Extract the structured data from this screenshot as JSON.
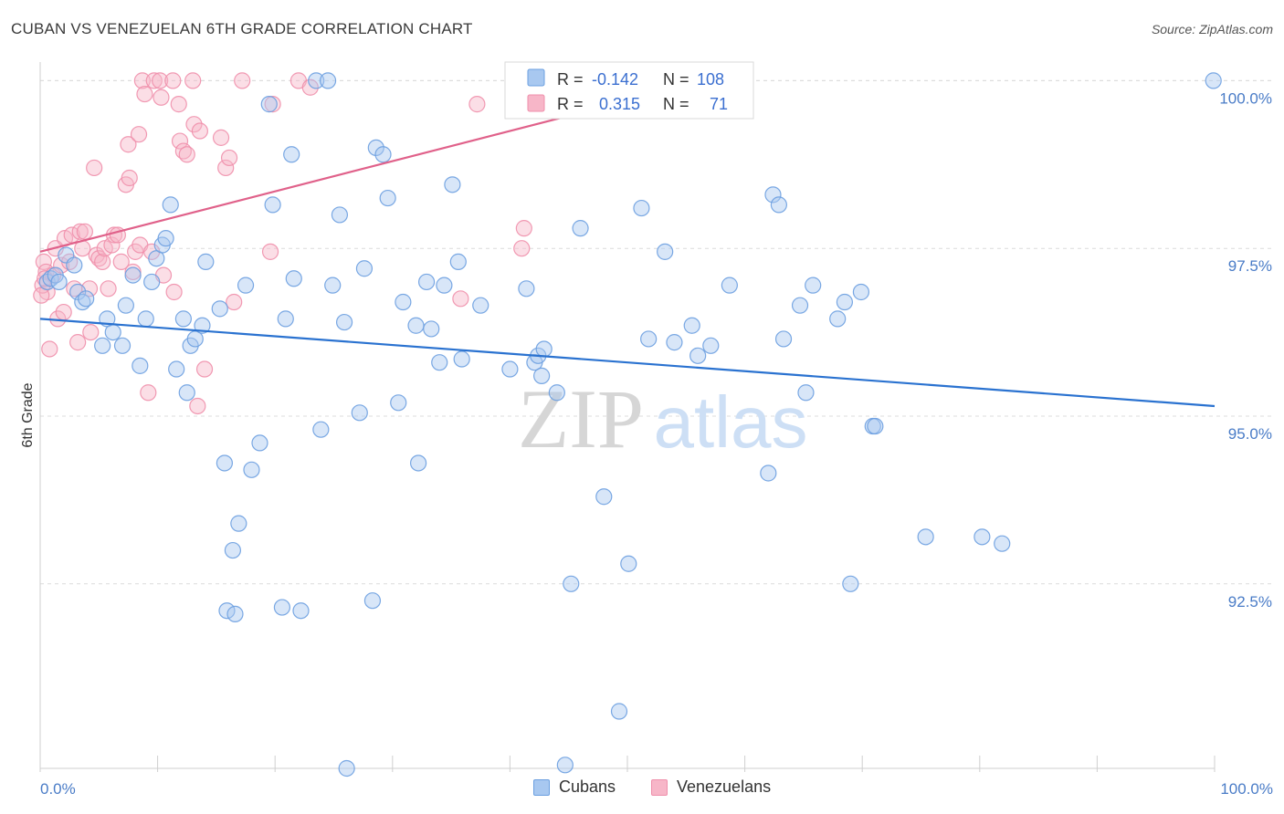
{
  "title": "CUBAN VS VENEZUELAN 6TH GRADE CORRELATION CHART",
  "source": "Source: ZipAtlas.com",
  "watermark": {
    "zip": "ZIP",
    "atlas": "atlas"
  },
  "colors": {
    "cuban_fill": "#a8c8f0",
    "cuban_stroke": "#6b9fe0",
    "cuban_line": "#2a72d0",
    "venez_fill": "#f7b6c8",
    "venez_stroke": "#ef8fab",
    "venez_line": "#e0618a",
    "tick_blue": "#4a7cc7",
    "grid": "#dcdcdc"
  },
  "legend": {
    "r_label": "R =",
    "n_label": "N =",
    "rows": [
      {
        "series": "Cubans",
        "r": "-0.142",
        "n": "108"
      },
      {
        "series": "Venezuelans",
        "r": "0.315",
        "n": "71"
      }
    ]
  },
  "bottom_legend": [
    "Cubans",
    "Venezuelans"
  ],
  "chart_data": {
    "type": "scatter",
    "xlabel": "",
    "ylabel": "6th Grade",
    "xlim": [
      0,
      100
    ],
    "ylim": [
      89.75,
      100.25
    ],
    "x_tick_labels": {
      "left": "0.0%",
      "right": "100.0%"
    },
    "y_ticks": [
      {
        "value": 100.0,
        "label": "100.0%"
      },
      {
        "value": 97.5,
        "label": "97.5%"
      },
      {
        "value": 95.0,
        "label": "95.0%"
      },
      {
        "value": 92.5,
        "label": "92.5%"
      }
    ],
    "series": [
      {
        "name": "Cubans",
        "r": -0.142,
        "n": 108,
        "trend": {
          "x": [
            0,
            100
          ],
          "y": [
            96.45,
            95.15
          ]
        },
        "points": [
          [
            0.6,
            97.0
          ],
          [
            0.9,
            97.05
          ],
          [
            1.3,
            97.1
          ],
          [
            1.6,
            97.0
          ],
          [
            2.2,
            97.4
          ],
          [
            2.9,
            97.25
          ],
          [
            3.2,
            96.85
          ],
          [
            3.6,
            96.7
          ],
          [
            3.9,
            96.75
          ],
          [
            5.3,
            96.05
          ],
          [
            5.7,
            96.45
          ],
          [
            6.2,
            96.25
          ],
          [
            7.0,
            96.05
          ],
          [
            7.3,
            96.65
          ],
          [
            7.9,
            97.1
          ],
          [
            8.5,
            95.75
          ],
          [
            9.0,
            96.45
          ],
          [
            9.5,
            97.0
          ],
          [
            9.9,
            97.35
          ],
          [
            10.4,
            97.55
          ],
          [
            10.7,
            97.65
          ],
          [
            11.1,
            98.15
          ],
          [
            11.6,
            95.7
          ],
          [
            12.2,
            96.45
          ],
          [
            12.5,
            95.35
          ],
          [
            12.8,
            96.05
          ],
          [
            13.2,
            96.15
          ],
          [
            13.8,
            96.35
          ],
          [
            14.1,
            97.3
          ],
          [
            15.3,
            96.6
          ],
          [
            15.7,
            94.3
          ],
          [
            15.9,
            92.1
          ],
          [
            16.4,
            93.0
          ],
          [
            16.6,
            92.05
          ],
          [
            16.9,
            93.4
          ],
          [
            17.5,
            96.95
          ],
          [
            18.0,
            94.2
          ],
          [
            18.7,
            94.6
          ],
          [
            19.5,
            99.65
          ],
          [
            19.8,
            98.15
          ],
          [
            20.6,
            92.15
          ],
          [
            20.9,
            96.45
          ],
          [
            21.4,
            98.9
          ],
          [
            21.6,
            97.05
          ],
          [
            22.2,
            92.1
          ],
          [
            23.5,
            100.0
          ],
          [
            23.9,
            94.8
          ],
          [
            24.5,
            100.0
          ],
          [
            24.9,
            96.95
          ],
          [
            25.5,
            98.0
          ],
          [
            25.9,
            96.4
          ],
          [
            26.1,
            89.75
          ],
          [
            27.2,
            95.05
          ],
          [
            27.6,
            97.2
          ],
          [
            28.3,
            92.25
          ],
          [
            28.6,
            99.0
          ],
          [
            29.2,
            98.9
          ],
          [
            29.6,
            98.25
          ],
          [
            30.5,
            95.2
          ],
          [
            30.9,
            96.7
          ],
          [
            32.0,
            96.35
          ],
          [
            32.2,
            94.3
          ],
          [
            32.9,
            97.0
          ],
          [
            33.3,
            96.3
          ],
          [
            34.0,
            95.8
          ],
          [
            34.4,
            96.95
          ],
          [
            35.1,
            98.45
          ],
          [
            35.6,
            97.3
          ],
          [
            35.9,
            95.85
          ],
          [
            37.5,
            96.65
          ],
          [
            40.0,
            95.7
          ],
          [
            41.4,
            96.9
          ],
          [
            42.1,
            95.8
          ],
          [
            42.4,
            95.9
          ],
          [
            42.7,
            95.6
          ],
          [
            42.9,
            96.0
          ],
          [
            44.0,
            95.35
          ],
          [
            44.7,
            89.8
          ],
          [
            45.2,
            92.5
          ],
          [
            46.0,
            97.8
          ],
          [
            48.0,
            93.8
          ],
          [
            49.3,
            90.6
          ],
          [
            50.1,
            92.8
          ],
          [
            51.2,
            98.1
          ],
          [
            51.8,
            96.15
          ],
          [
            53.2,
            97.45
          ],
          [
            54.0,
            96.1
          ],
          [
            55.5,
            96.35
          ],
          [
            56.0,
            95.9
          ],
          [
            57.1,
            96.05
          ],
          [
            58.7,
            96.95
          ],
          [
            62.0,
            94.15
          ],
          [
            62.4,
            98.3
          ],
          [
            62.9,
            98.15
          ],
          [
            63.3,
            96.15
          ],
          [
            64.7,
            96.65
          ],
          [
            65.2,
            95.35
          ],
          [
            65.8,
            96.95
          ],
          [
            67.9,
            96.45
          ],
          [
            68.5,
            96.7
          ],
          [
            69.0,
            92.5
          ],
          [
            69.9,
            96.85
          ],
          [
            70.9,
            94.85
          ],
          [
            71.1,
            94.85
          ],
          [
            75.4,
            93.2
          ],
          [
            80.2,
            93.2
          ],
          [
            81.9,
            93.1
          ],
          [
            99.9,
            100.0
          ]
        ]
      },
      {
        "name": "Venezuelans",
        "r": 0.315,
        "n": 71,
        "trend": {
          "x": [
            0,
            50
          ],
          "y": [
            97.45,
            99.7
          ]
        },
        "points": [
          [
            0.3,
            97.3
          ],
          [
            0.5,
            97.15
          ],
          [
            0.6,
            96.85
          ],
          [
            0.8,
            96.0
          ],
          [
            1.1,
            97.1
          ],
          [
            1.3,
            97.5
          ],
          [
            1.5,
            96.45
          ],
          [
            1.8,
            97.25
          ],
          [
            2.0,
            96.55
          ],
          [
            2.1,
            97.65
          ],
          [
            2.5,
            97.3
          ],
          [
            2.7,
            97.7
          ],
          [
            2.9,
            96.9
          ],
          [
            3.2,
            96.1
          ],
          [
            3.4,
            97.75
          ],
          [
            3.6,
            97.5
          ],
          [
            3.8,
            97.75
          ],
          [
            4.2,
            96.9
          ],
          [
            4.3,
            96.25
          ],
          [
            4.6,
            98.7
          ],
          [
            4.8,
            97.4
          ],
          [
            5.0,
            97.35
          ],
          [
            5.3,
            97.3
          ],
          [
            5.5,
            97.5
          ],
          [
            5.8,
            96.9
          ],
          [
            6.1,
            97.55
          ],
          [
            6.3,
            97.7
          ],
          [
            6.6,
            97.7
          ],
          [
            6.9,
            97.3
          ],
          [
            7.3,
            98.45
          ],
          [
            7.5,
            99.05
          ],
          [
            7.6,
            98.55
          ],
          [
            7.9,
            97.15
          ],
          [
            8.1,
            97.45
          ],
          [
            8.4,
            99.2
          ],
          [
            8.5,
            97.55
          ],
          [
            8.7,
            100.0
          ],
          [
            8.9,
            99.8
          ],
          [
            9.2,
            95.35
          ],
          [
            9.5,
            97.45
          ],
          [
            9.7,
            100.0
          ],
          [
            10.2,
            100.0
          ],
          [
            10.3,
            99.75
          ],
          [
            10.5,
            97.1
          ],
          [
            11.3,
            100.0
          ],
          [
            11.4,
            96.85
          ],
          [
            11.8,
            99.65
          ],
          [
            11.9,
            99.1
          ],
          [
            12.2,
            98.95
          ],
          [
            12.5,
            98.9
          ],
          [
            13.0,
            100.0
          ],
          [
            13.1,
            99.35
          ],
          [
            13.4,
            95.15
          ],
          [
            13.6,
            99.25
          ],
          [
            14.0,
            95.7
          ],
          [
            15.4,
            99.15
          ],
          [
            15.8,
            98.7
          ],
          [
            16.1,
            98.85
          ],
          [
            16.5,
            96.7
          ],
          [
            17.2,
            100.0
          ],
          [
            19.6,
            97.45
          ],
          [
            19.8,
            99.65
          ],
          [
            22.0,
            100.0
          ],
          [
            23.0,
            99.9
          ],
          [
            35.8,
            96.75
          ],
          [
            37.2,
            99.65
          ],
          [
            41.0,
            97.5
          ],
          [
            41.2,
            97.8
          ],
          [
            0.2,
            96.95
          ],
          [
            0.4,
            97.05
          ],
          [
            0.1,
            96.8
          ]
        ]
      }
    ]
  }
}
